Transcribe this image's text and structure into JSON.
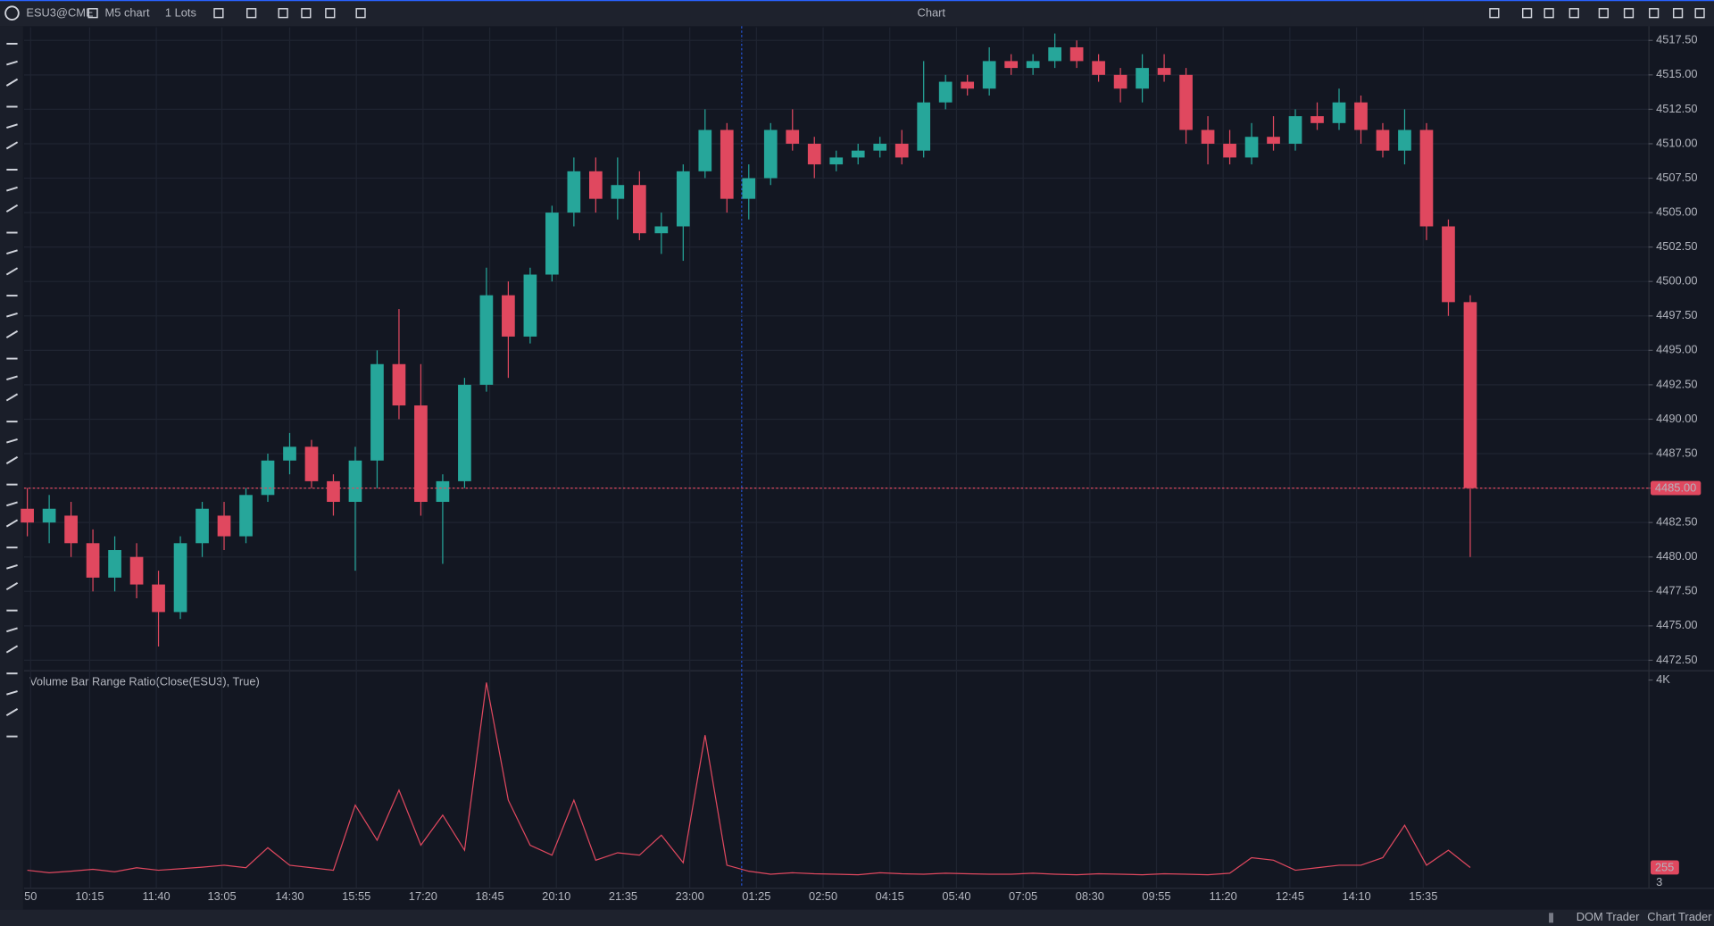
{
  "toolbar": {
    "symbol": "ESU3@CME",
    "timeframe": "M5 chart",
    "quantity": "1 Lots",
    "title": "Chart"
  },
  "footer": {
    "dom_trader": "DOM Trader",
    "chart_trader": "Chart Trader"
  },
  "chart_data": [
    {
      "type": "candlestick",
      "up_color": "#26a69a",
      "down_color": "#e0485f",
      "grid": true,
      "open": [
        4483.5,
        4482.5,
        4483,
        4481,
        4478.5,
        4480,
        4478,
        4476,
        4481,
        4483,
        4481.5,
        4484.5,
        4487,
        4488,
        4485.5,
        4484,
        4487,
        4494,
        4491,
        4484,
        4485.5,
        4492.5,
        4499,
        4496,
        4500.5,
        4505,
        4508,
        4506,
        4507,
        4503.5,
        4504,
        4508,
        4511,
        4506,
        4507.5,
        4511,
        4510,
        4508.5,
        4509,
        4509.5,
        4510,
        4509.5,
        4513,
        4514.5,
        4514,
        4516,
        4515.5,
        4516,
        4517,
        4516,
        4515,
        4514,
        4515.5,
        4515,
        4511,
        4510,
        4509,
        4510.5,
        4510,
        4512,
        4511.5,
        4513,
        4511,
        4509.5,
        4511,
        4504,
        4498.5
      ],
      "high": [
        4485,
        4484.5,
        4484,
        4482,
        4481.5,
        4481,
        4479,
        4481.5,
        4484,
        4484,
        4485,
        4487.5,
        4489,
        4488.5,
        4486,
        4488,
        4495,
        4498,
        4494,
        4486,
        4493,
        4501,
        4500,
        4501,
        4505.5,
        4509,
        4509,
        4509,
        4508,
        4505,
        4508.5,
        4512.5,
        4511.5,
        4508.5,
        4511.5,
        4512.5,
        4510.5,
        4509.5,
        4510,
        4510.5,
        4511,
        4516,
        4515,
        4515,
        4517,
        4516.5,
        4516.5,
        4518,
        4517.5,
        4516.5,
        4515.5,
        4516.5,
        4516.5,
        4515.5,
        4512,
        4511,
        4511.5,
        4512,
        4512.5,
        4513,
        4514,
        4513.5,
        4511.5,
        4512.5,
        4511.5,
        4504.5,
        4499
      ],
      "low": [
        4481.5,
        4481,
        4480,
        4477.5,
        4477.5,
        4477,
        4473.5,
        4475.5,
        4480,
        4480.5,
        4481,
        4484,
        4486,
        4485,
        4483,
        4479,
        4485,
        4490,
        4483,
        4479.5,
        4485,
        4492,
        4493,
        4495.5,
        4500,
        4504,
        4505,
        4504.5,
        4503,
        4502,
        4501.5,
        4507.5,
        4505,
        4504.5,
        4507,
        4509.5,
        4507.5,
        4508,
        4508.5,
        4509,
        4508.5,
        4509,
        4512.5,
        4513.5,
        4513.5,
        4515,
        4515,
        4515.5,
        4515.5,
        4514.5,
        4513,
        4513,
        4514.5,
        4510,
        4508.5,
        4508.5,
        4508.5,
        4509.5,
        4509.5,
        4511,
        4511,
        4510,
        4509,
        4508.5,
        4503,
        4497.5,
        4480
      ],
      "close": [
        4482.5,
        4483.5,
        4481,
        4478.5,
        4480.5,
        4478,
        4476,
        4481,
        4483.5,
        4481.5,
        4484.5,
        4487,
        4488,
        4485.5,
        4484,
        4487,
        4494,
        4491,
        4484,
        4485.5,
        4492.5,
        4499,
        4496,
        4500.5,
        4505,
        4508,
        4506,
        4507,
        4503.5,
        4504,
        4508,
        4511,
        4506,
        4507.5,
        4511,
        4510,
        4508.5,
        4509,
        4509.5,
        4510,
        4509,
        4513,
        4514.5,
        4514,
        4516,
        4515.5,
        4516,
        4517,
        4516,
        4515,
        4514,
        4515.5,
        4515,
        4511,
        4510,
        4509,
        4510.5,
        4510,
        4512,
        4511.5,
        4513,
        4511,
        4509.5,
        4511,
        4504,
        4498.5,
        4485
      ],
      "xlim": [
        -0.15,
        74.15
      ],
      "xticks": [
        {
          "value": 0.15,
          "label": "50"
        },
        {
          "value": 2.85,
          "label": "10:15"
        },
        {
          "value": 5.9,
          "label": "11:40"
        },
        {
          "value": 8.9,
          "label": "13:05"
        },
        {
          "value": 12,
          "label": "14:30"
        },
        {
          "value": 15.05,
          "label": "15:55"
        },
        {
          "value": 18.1,
          "label": "17:20"
        },
        {
          "value": 21.15,
          "label": "18:45"
        },
        {
          "value": 24.2,
          "label": "20:10"
        },
        {
          "value": 27.25,
          "label": "21:35"
        },
        {
          "value": 30.3,
          "label": "23:00"
        },
        {
          "value": 33.35,
          "label": "01:25"
        },
        {
          "value": 36.4,
          "label": "02:50"
        },
        {
          "value": 39.45,
          "label": "04:15"
        },
        {
          "value": 42.5,
          "label": "05:40"
        },
        {
          "value": 45.55,
          "label": "07:05"
        },
        {
          "value": 48.6,
          "label": "08:30"
        },
        {
          "value": 51.65,
          "label": "09:55"
        },
        {
          "value": 54.7,
          "label": "11:20"
        },
        {
          "value": 57.75,
          "label": "12:45"
        },
        {
          "value": 60.8,
          "label": "14:10"
        },
        {
          "value": 63.85,
          "label": "15:35"
        }
      ],
      "ylim": [
        4471.86,
        4518.45
      ],
      "yticks": [
        {
          "value": 4472.5,
          "label": "4472.50"
        },
        {
          "value": 4475,
          "label": "4475.00"
        },
        {
          "value": 4477.5,
          "label": "4477.50"
        },
        {
          "value": 4480,
          "label": "4480.00"
        },
        {
          "value": 4482.5,
          "label": "4482.50"
        },
        {
          "value": 4485,
          "label": "4485.00"
        },
        {
          "value": 4487.5,
          "label": "4487.50"
        },
        {
          "value": 4490,
          "label": "4490.00"
        },
        {
          "value": 4492.5,
          "label": "4492.50"
        },
        {
          "value": 4495,
          "label": "4495.00"
        },
        {
          "value": 4497.5,
          "label": "4497.50"
        },
        {
          "value": 4500,
          "label": "4500.00"
        },
        {
          "value": 4502.5,
          "label": "4502.50"
        },
        {
          "value": 4505,
          "label": "4505.00"
        },
        {
          "value": 4507.5,
          "label": "4507.50"
        },
        {
          "value": 4510,
          "label": "4510.00"
        },
        {
          "value": 4512.5,
          "label": "4512.50"
        },
        {
          "value": 4515,
          "label": "4515.00"
        },
        {
          "value": 4517.5,
          "label": "4517.50"
        }
      ],
      "last_price": {
        "value": 4485,
        "label": "4485.00"
      },
      "last_price_color": "#e0485f"
    },
    {
      "type": "line",
      "title": "Volume Bar Range Ratio(Close(ESU3), True)",
      "color": "#e0485f",
      "values": [
        200,
        150,
        180,
        220,
        170,
        250,
        200,
        230,
        260,
        300,
        250,
        650,
        300,
        250,
        200,
        1500,
        800,
        1800,
        700,
        1300,
        600,
        3950,
        1600,
        700,
        500,
        1600,
        400,
        550,
        500,
        900,
        350,
        2900,
        300,
        180,
        120,
        150,
        130,
        120,
        110,
        150,
        130,
        120,
        140,
        130,
        120,
        120,
        140,
        120,
        110,
        130,
        120,
        110,
        130,
        120,
        110,
        140,
        450,
        400,
        200,
        250,
        300,
        300,
        450,
        1100,
        300,
        600,
        255
      ],
      "ylim": [
        -150,
        4175
      ],
      "yticks": [
        {
          "value": 4000,
          "label": "4K"
        }
      ],
      "last_value": 255,
      "secondary_label": "3"
    }
  ]
}
